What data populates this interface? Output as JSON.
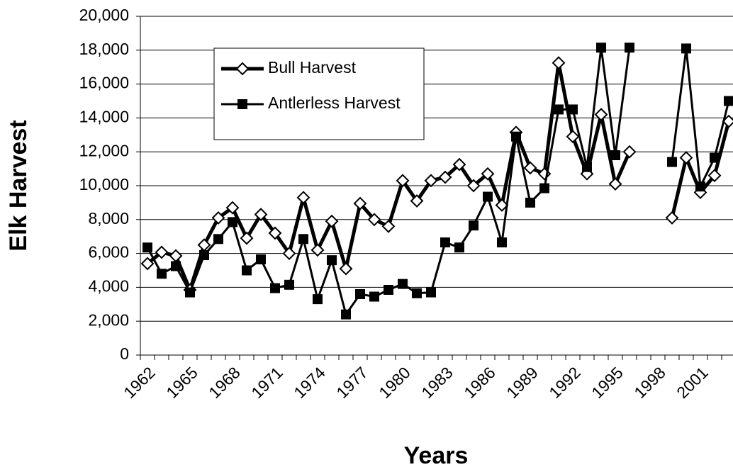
{
  "chart_data": {
    "type": "line",
    "x_label": "Years",
    "y_label": "Elk Harvest",
    "categories": [
      "1962",
      null,
      null,
      "1965",
      null,
      null,
      "1968",
      null,
      null,
      "1971",
      null,
      null,
      "1974",
      null,
      null,
      "1977",
      null,
      null,
      "1980",
      null,
      null,
      "1983",
      null,
      null,
      "1986",
      null,
      null,
      "1989",
      null,
      null,
      "1992",
      null,
      null,
      "1995",
      null,
      null,
      "1998",
      null,
      null,
      "2001",
      null,
      null
    ],
    "series": [
      {
        "name": "Bull Harvest",
        "color": "#000000",
        "marker": "diamond",
        "values": [
          5400,
          6070,
          5860,
          3850,
          6500,
          8100,
          8700,
          6900,
          8300,
          7200,
          6000,
          9300,
          6200,
          7900,
          5100,
          8950,
          8000,
          7600,
          10300,
          9100,
          10300,
          10500,
          11250,
          10000,
          10700,
          8850,
          13150,
          11050,
          10700,
          17250,
          12900,
          10700,
          14200,
          10100,
          12000,
          null,
          null,
          8100,
          11650,
          9600,
          10600,
          13800
        ]
      },
      {
        "name": "Antlerless Harvest",
        "color": "#000000",
        "marker": "square",
        "values": [
          6350,
          4800,
          5250,
          3700,
          5900,
          6850,
          7850,
          5000,
          5650,
          3950,
          4150,
          6850,
          3300,
          5600,
          2400,
          3600,
          3450,
          3850,
          4200,
          3650,
          3700,
          6650,
          6350,
          7650,
          9350,
          6650,
          12900,
          9000,
          9850,
          14500,
          14500,
          11100,
          18150,
          11800,
          18150,
          null,
          null,
          11400,
          18100,
          9950,
          11650,
          15000
        ]
      }
    ],
    "ylim": [
      0,
      20000
    ],
    "yticks": [
      0,
      {
        "value": 2000,
        "label": "2,000"
      },
      {
        "value": 4000,
        "label": "4,000"
      },
      {
        "value": 6000,
        "label": "6,000"
      },
      {
        "value": 8000,
        "label": "8,000"
      },
      {
        "value": 10000,
        "label": "10,000"
      },
      {
        "value": 12000,
        "label": "12,000"
      },
      {
        "value": 14000,
        "label": "14,000"
      },
      {
        "value": 16000,
        "label": "16,000"
      },
      {
        "value": 18000,
        "label": "18,000"
      },
      {
        "value": 20000,
        "label": "20,000"
      }
    ],
    "grid": true
  }
}
